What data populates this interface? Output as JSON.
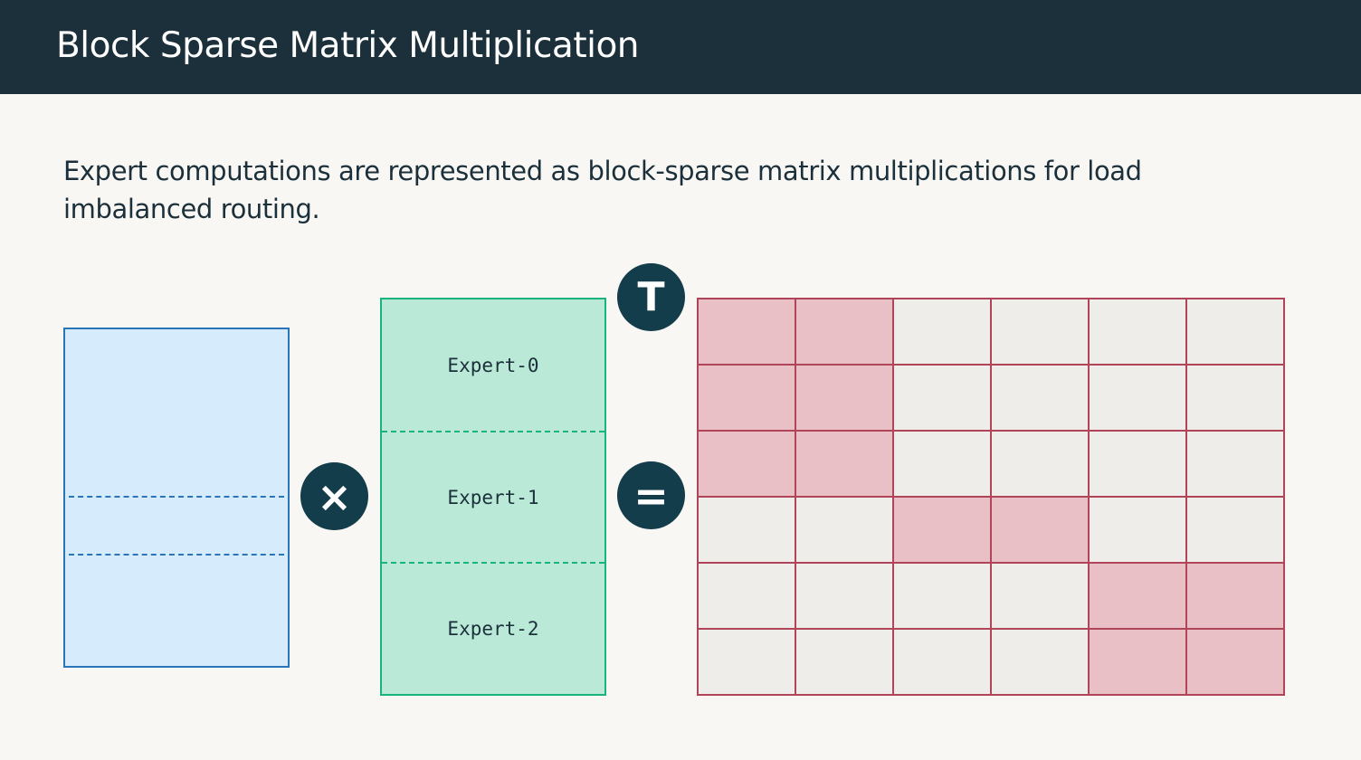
{
  "header": {
    "title": "Block Sparse Matrix Multiplication"
  },
  "description": "Expert computations are represented as block-sparse matrix multiplications for load imbalanced routing.",
  "operators": {
    "multiply": "×",
    "transpose": "T",
    "equals": "="
  },
  "experts": [
    "Expert-0",
    "Expert-1",
    "Expert-2"
  ],
  "colors": {
    "header": "#1b303a",
    "input": "#d6ebfb",
    "input_border": "#2a75ba",
    "expert": "#bae9d8",
    "expert_border": "#18b37e",
    "block_active": "#e9c0c6",
    "block_inactive": "#efede9",
    "grid_border": "#b04459",
    "operator": "#133d4a"
  },
  "output_blocks": [
    [
      1,
      1,
      0,
      0,
      0,
      0
    ],
    [
      1,
      1,
      0,
      0,
      0,
      0
    ],
    [
      1,
      1,
      0,
      0,
      0,
      0
    ],
    [
      0,
      0,
      1,
      1,
      0,
      0
    ],
    [
      0,
      0,
      0,
      0,
      1,
      1
    ],
    [
      0,
      0,
      0,
      0,
      1,
      1
    ]
  ]
}
